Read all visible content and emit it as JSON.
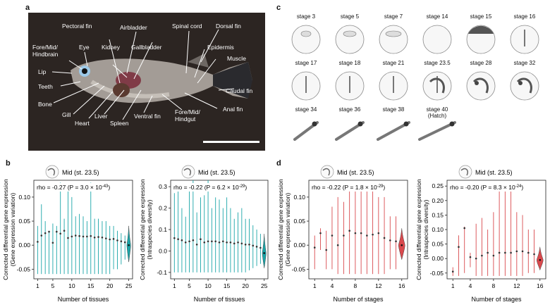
{
  "panels": {
    "a": "a",
    "b": "b",
    "c": "c",
    "d": "d"
  },
  "fish_labels": {
    "fore_mid_hindbrain": [
      "Fore/Mid/",
      "Hindbrain"
    ],
    "eye": "Eye",
    "pectoral_fin": "Pectoral fin",
    "airbladder": "Airbladder",
    "spinal_cord": "Spinal cord",
    "dorsal_fin": "Dorsal fin",
    "kidney": "Kidney",
    "gallbladder": "Gallbladder",
    "epidermis": "Epidermis",
    "muscle": "Muscle",
    "lip": "Lip",
    "teeth": "Teeth",
    "bone": "Bone",
    "gill": "Gill",
    "heart": "Heart",
    "liver": "Liver",
    "spleen": "Spleen",
    "ventral_fin": "Ventral fin",
    "fore_mid_hindgut": [
      "Fore/Mid/",
      "Hindgut"
    ],
    "anal_fin": "Anal fin",
    "caudal_fin": "Caudal fin"
  },
  "stages": [
    "stage 3",
    "stage 5",
    "stage 7",
    "stage 14",
    "stage 15",
    "stage 16",
    "stage 17",
    "stage 18",
    "stage 21",
    "stage 23.5",
    "stage 28",
    "stage 32",
    "stage 34",
    "stage 36",
    "stage 38",
    "stage 40"
  ],
  "stage_hatch_note": "(Hatch)",
  "colors": {
    "teal": "#1aa5a8",
    "red": "#d9494d",
    "dark": "#333333",
    "photo_bg": "#2c2522"
  },
  "chart_data": [
    {
      "type": "scatter",
      "panel": "b-left",
      "title": "Mid (st. 23.5)",
      "annotation": "rho = -0.27 (P = 3.0 × 10",
      "annotation_exp": "-43",
      "ylabel": [
        "Corrected differential gene expression",
        "(Gene expression variation)"
      ],
      "xlabel": "Number of tissues",
      "xlim": [
        0,
        26
      ],
      "ylim": [
        -0.07,
        0.135
      ],
      "xticks": [
        1,
        5,
        10,
        15,
        20,
        25
      ],
      "yticks": [
        "0.10",
        "0.05",
        "0.00",
        "-0.05"
      ],
      "ytick_values": [
        0.1,
        0.05,
        0.0,
        -0.05
      ],
      "x": [
        1,
        2,
        3,
        4,
        5,
        6,
        7,
        8,
        9,
        10,
        11,
        12,
        13,
        14,
        15,
        16,
        17,
        18,
        19,
        20,
        21,
        22,
        23,
        24
      ],
      "medians": [
        0.007,
        0.02,
        0.025,
        0.028,
        0.005,
        0.028,
        0.024,
        0.03,
        0.015,
        0.018,
        0.02,
        0.019,
        0.018,
        0.018,
        0.019,
        0.016,
        0.017,
        0.016,
        0.014,
        0.012,
        0.013,
        0.01,
        0.008,
        0.006
      ],
      "lows": [
        -0.06,
        -0.06,
        -0.06,
        -0.06,
        -0.06,
        -0.06,
        -0.06,
        -0.06,
        -0.06,
        -0.06,
        -0.06,
        -0.06,
        -0.06,
        -0.06,
        -0.06,
        -0.06,
        -0.06,
        -0.06,
        -0.06,
        -0.06,
        -0.05,
        -0.05,
        -0.04,
        -0.03
      ],
      "highs": [
        0.04,
        0.085,
        0.05,
        0.03,
        0.045,
        0.04,
        0.13,
        0.055,
        0.12,
        0.1,
        0.06,
        0.065,
        0.06,
        0.05,
        0.13,
        0.055,
        0.055,
        0.05,
        0.05,
        0.04,
        0.04,
        0.03,
        0.025,
        0.02
      ],
      "violin": {
        "x": 25,
        "center": 0.0,
        "low": -0.035,
        "high": 0.04,
        "width": 0.5
      },
      "color": "#1aa5a8"
    },
    {
      "type": "scatter",
      "panel": "b-right",
      "title": "Mid (st. 23.5)",
      "annotation": "rho = -0.22 (P = 6.2 × 10",
      "annotation_exp": "-29",
      "ylabel": [
        "Corrected differential gene expression",
        "(Intraspecies diversity)"
      ],
      "xlabel": "Number of tissues",
      "xlim": [
        0,
        26
      ],
      "ylim": [
        -0.13,
        0.33
      ],
      "xticks": [
        1,
        5,
        10,
        15,
        20,
        25
      ],
      "yticks": [
        "0.3",
        "0.2",
        "0.1",
        "0.0",
        "-0.1"
      ],
      "ytick_values": [
        0.3,
        0.2,
        0.1,
        0.0,
        -0.1
      ],
      "x": [
        1,
        2,
        3,
        4,
        5,
        6,
        7,
        8,
        9,
        10,
        11,
        12,
        13,
        14,
        15,
        16,
        17,
        18,
        19,
        20,
        21,
        22,
        23,
        24
      ],
      "medians": [
        0.06,
        0.055,
        0.05,
        0.04,
        0.045,
        0.05,
        0.03,
        0.055,
        0.04,
        0.045,
        0.045,
        0.045,
        0.04,
        0.045,
        0.04,
        0.04,
        0.035,
        0.04,
        0.035,
        0.03,
        0.03,
        0.025,
        0.02,
        0.015
      ],
      "lows": [
        -0.1,
        -0.1,
        -0.1,
        -0.1,
        -0.1,
        -0.1,
        -0.1,
        -0.1,
        -0.1,
        -0.1,
        -0.1,
        -0.1,
        -0.1,
        -0.1,
        -0.1,
        -0.1,
        -0.1,
        -0.1,
        -0.1,
        -0.1,
        -0.09,
        -0.08,
        -0.07,
        -0.06
      ],
      "highs": [
        0.27,
        0.3,
        0.2,
        0.16,
        0.3,
        0.33,
        0.18,
        0.25,
        0.26,
        0.33,
        0.2,
        0.25,
        0.24,
        0.2,
        0.25,
        0.2,
        0.15,
        0.18,
        0.2,
        0.15,
        0.15,
        0.12,
        0.1,
        0.08
      ],
      "violin": {
        "x": 25,
        "center": -0.01,
        "low": -0.08,
        "high": 0.08,
        "width": 0.5
      },
      "color": "#1aa5a8"
    },
    {
      "type": "scatter",
      "panel": "d-left",
      "title": "Mid (st. 23.5)",
      "annotation": "rho = -0.22 (P = 1.8 × 10",
      "annotation_exp": "-29",
      "ylabel": [
        "Corrected differential gene expression",
        "(Gene expression variation)"
      ],
      "xlabel": "Number of stages",
      "xlim": [
        0,
        17
      ],
      "ylim": [
        -0.07,
        0.135
      ],
      "xticks": [
        1,
        4,
        8,
        12,
        16
      ],
      "yticks": [
        "0.10",
        "0.05",
        "0.00",
        "-0.05"
      ],
      "ytick_values": [
        0.1,
        0.05,
        0.0,
        -0.05
      ],
      "x": [
        1,
        2,
        3,
        4,
        5,
        6,
        7,
        8,
        9,
        10,
        11,
        12,
        13,
        14,
        15
      ],
      "medians": [
        -0.005,
        0.025,
        -0.01,
        0.02,
        0.0,
        0.02,
        0.03,
        0.025,
        0.025,
        0.02,
        0.022,
        0.025,
        0.015,
        0.01,
        0.008
      ],
      "lows": [
        -0.05,
        -0.01,
        -0.05,
        -0.05,
        -0.06,
        -0.06,
        -0.06,
        -0.06,
        -0.06,
        -0.06,
        -0.06,
        -0.06,
        -0.06,
        -0.05,
        -0.05
      ],
      "highs": [
        0.02,
        0.035,
        0.03,
        0.08,
        0.1,
        0.09,
        0.12,
        0.12,
        0.12,
        0.115,
        0.12,
        0.1,
        0.1,
        0.06,
        0.06
      ],
      "violin": {
        "x": 16,
        "center": 0.0,
        "low": -0.03,
        "high": 0.035,
        "width": 0.55
      },
      "color": "#d9494d"
    },
    {
      "type": "scatter",
      "panel": "d-right",
      "title": "Mid (st. 23.5)",
      "annotation": "rho = -0.20 (P = 8.3 × 10",
      "annotation_exp": "-24",
      "ylabel": [
        "Corrected differential gene expression",
        "(Intraspecies diversity)"
      ],
      "xlabel": "Number of stages",
      "xlim": [
        0,
        17
      ],
      "ylim": [
        -0.07,
        0.27
      ],
      "xticks": [
        1,
        4,
        8,
        12,
        16
      ],
      "yticks": [
        "0.25",
        "0.20",
        "0.15",
        "0.10",
        "0.05",
        "0.00",
        "-0.05"
      ],
      "ytick_values": [
        0.25,
        0.2,
        0.15,
        0.1,
        0.05,
        0.0,
        -0.05
      ],
      "x": [
        1,
        2,
        3,
        4,
        5,
        6,
        7,
        8,
        9,
        10,
        11,
        12,
        13,
        14,
        15
      ],
      "medians": [
        -0.045,
        0.04,
        0.105,
        0.005,
        0.0,
        0.01,
        0.02,
        0.01,
        0.02,
        0.02,
        0.02,
        0.025,
        0.025,
        0.02,
        0.015
      ],
      "lows": [
        -0.06,
        -0.06,
        -0.05,
        -0.03,
        -0.06,
        -0.06,
        -0.06,
        -0.06,
        -0.06,
        -0.06,
        -0.06,
        -0.06,
        -0.06,
        -0.05,
        -0.05
      ],
      "highs": [
        -0.03,
        0.08,
        0.11,
        0.02,
        0.12,
        0.14,
        0.1,
        0.16,
        0.26,
        0.26,
        0.26,
        0.16,
        0.15,
        0.1,
        0.1
      ],
      "violin": {
        "x": 16,
        "center": -0.005,
        "low": -0.04,
        "high": 0.04,
        "width": 0.55
      },
      "color": "#d9494d"
    }
  ]
}
